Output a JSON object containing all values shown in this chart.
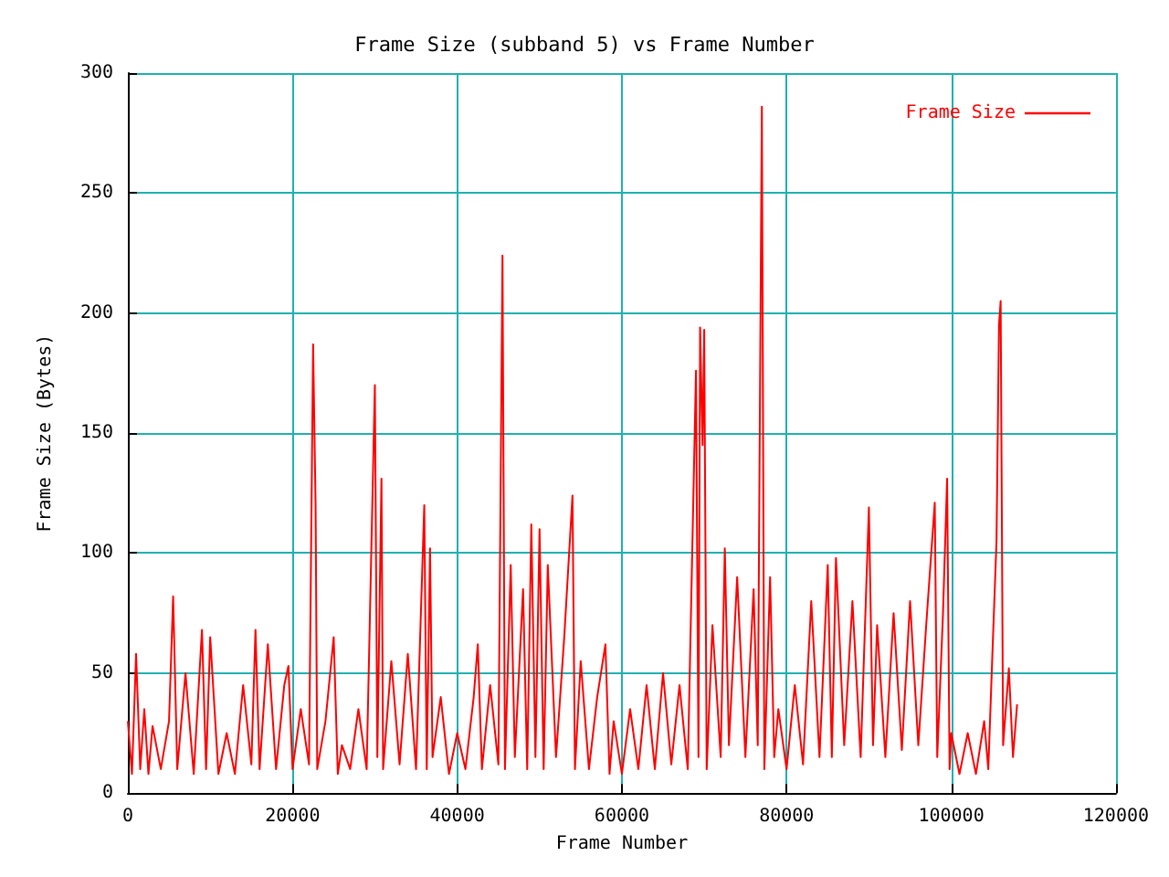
{
  "chart_data": {
    "type": "line",
    "title": "Frame Size (subband 5) vs Frame Number",
    "xlabel": "Frame Number",
    "ylabel": "Frame Size (Bytes)",
    "xlim": [
      0,
      120000
    ],
    "xticks": [
      0,
      20000,
      40000,
      60000,
      80000,
      100000,
      120000
    ],
    "ylim": [
      0,
      300
    ],
    "yticks": [
      0,
      50,
      100,
      150,
      200,
      250,
      300
    ],
    "grid": true,
    "legend": "top right",
    "marker": "none",
    "line_style": "solid",
    "series": [
      {
        "name": "Frame Size",
        "color": "#ff0000",
        "x": [
          0,
          500,
          1000,
          1500,
          2000,
          2500,
          3000,
          4000,
          5000,
          5500,
          6000,
          7000,
          8000,
          9000,
          9500,
          10000,
          11000,
          12000,
          13000,
          14000,
          15000,
          15500,
          16000,
          17000,
          18000,
          19000,
          19500,
          20000,
          21000,
          22000,
          22500,
          22800,
          23000,
          24000,
          25000,
          25500,
          26000,
          27000,
          28000,
          29000,
          30000,
          30300,
          30800,
          31000,
          32000,
          33000,
          34000,
          35000,
          36000,
          36300,
          36700,
          37000,
          38000,
          39000,
          40000,
          41000,
          42000,
          42500,
          43000,
          44000,
          45000,
          45500,
          45800,
          46500,
          47000,
          48000,
          48500,
          49000,
          49500,
          50000,
          50500,
          51000,
          52000,
          53000,
          54000,
          54300,
          55000,
          56000,
          57000,
          58000,
          58500,
          59000,
          60000,
          61000,
          62000,
          63000,
          64000,
          65000,
          66000,
          67000,
          68000,
          69000,
          69300,
          69500,
          69800,
          70000,
          70300,
          71000,
          72000,
          72500,
          73000,
          74000,
          75000,
          76000,
          76500,
          77000,
          77300,
          78000,
          78500,
          79000,
          80000,
          81000,
          82000,
          83000,
          84000,
          85000,
          85500,
          86000,
          87000,
          88000,
          89000,
          90000,
          90500,
          91000,
          92000,
          93000,
          94000,
          95000,
          96000,
          97000,
          98000,
          98300,
          99000,
          99500,
          99800,
          100000,
          101000,
          102000,
          103000,
          104000,
          104500,
          105000,
          105500,
          105800,
          106000,
          106300,
          107000,
          107500,
          108000
        ],
        "values": [
          30,
          8,
          58,
          10,
          35,
          8,
          28,
          10,
          30,
          82,
          10,
          50,
          8,
          68,
          10,
          65,
          8,
          25,
          8,
          45,
          12,
          68,
          10,
          62,
          10,
          45,
          53,
          10,
          35,
          12,
          187,
          120,
          10,
          30,
          65,
          8,
          20,
          10,
          35,
          10,
          170,
          15,
          131,
          10,
          55,
          12,
          58,
          10,
          120,
          10,
          102,
          15,
          40,
          8,
          25,
          10,
          40,
          62,
          10,
          45,
          12,
          224,
          10,
          95,
          15,
          85,
          10,
          112,
          15,
          110,
          10,
          95,
          15,
          65,
          124,
          10,
          55,
          10,
          40,
          62,
          8,
          30,
          8,
          35,
          10,
          45,
          10,
          50,
          12,
          45,
          10,
          176,
          15,
          194,
          145,
          193,
          10,
          70,
          15,
          102,
          20,
          90,
          15,
          85,
          20,
          286,
          10,
          90,
          15,
          35,
          10,
          45,
          12,
          80,
          15,
          95,
          15,
          98,
          20,
          80,
          15,
          119,
          20,
          70,
          15,
          75,
          18,
          80,
          20,
          72,
          121,
          15,
          75,
          131,
          10,
          25,
          8,
          25,
          8,
          30,
          10,
          58,
          105,
          195,
          205,
          20,
          52,
          15,
          37
        ]
      }
    ]
  }
}
